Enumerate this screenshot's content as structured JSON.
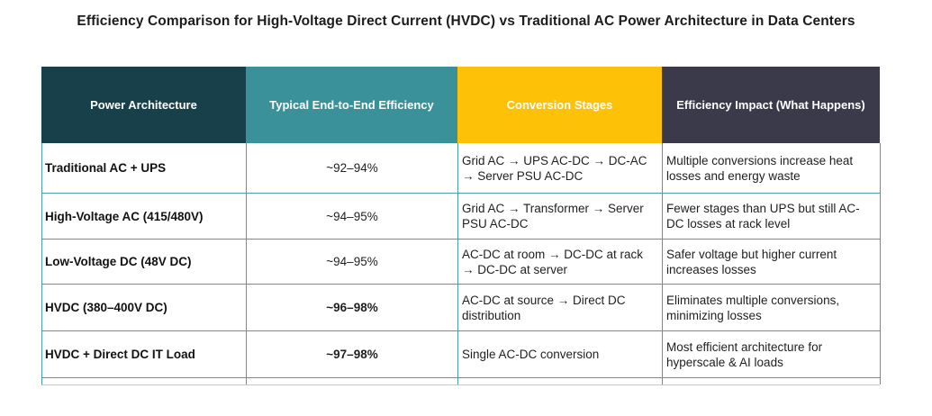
{
  "chart_data": {
    "type": "table",
    "title": "Efficiency Comparison for High-Voltage Direct Current (HVDC) vs Traditional AC Power Architecture in Data Centers",
    "columns": [
      "Power Architecture",
      "Typical End-to-End Efficiency",
      "Conversion Stages",
      "Efficiency Impact (What Happens)"
    ],
    "header_colors": [
      "#17404b",
      "#3b9199",
      "#fdc107",
      "#3a3a4b"
    ],
    "header_text_color": "#ffffff",
    "border_color": "#4c9da4",
    "rows": [
      [
        "Traditional AC + UPS",
        "~92–94%",
        "Grid AC → UPS AC-DC → DC-AC → Server PSU AC-DC",
        "Multiple conversions increase heat losses and energy waste"
      ],
      [
        "High-Voltage AC (415/480V)",
        "~94–95%",
        "Grid AC → Transformer → Server PSU AC-DC",
        "Fewer stages than UPS but still AC-DC losses at rack level"
      ],
      [
        "Low-Voltage DC (48V DC)",
        "~94–95%",
        "AC-DC at room → DC-DC at rack → DC-DC at server",
        "Safer voltage but higher current increases losses"
      ],
      [
        "HVDC (380–400V DC)",
        "~96–98%",
        "AC-DC at source → Direct DC distribution",
        "Eliminates multiple conversions, minimizing losses"
      ],
      [
        "HVDC + Direct DC IT Load",
        "~97–98%",
        "Single AC-DC conversion",
        "Most efficient architecture for hyperscale & AI loads"
      ]
    ]
  }
}
